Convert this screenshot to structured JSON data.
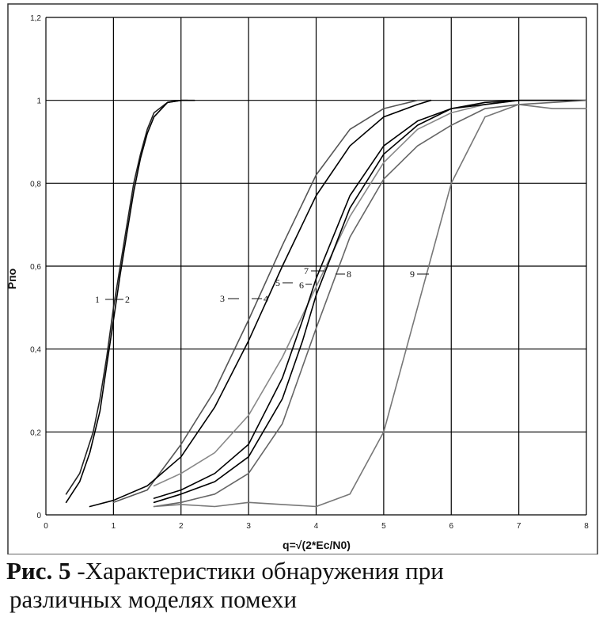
{
  "chart_data": {
    "type": "line",
    "title": "",
    "xlabel": "q=√(2*Ec/N0)",
    "ylabel": "Pпо",
    "xlim": [
      0,
      8
    ],
    "ylim": [
      0,
      1.2
    ],
    "x_ticks": [
      "0",
      "1",
      "2",
      "3",
      "4",
      "5",
      "6",
      "7",
      "8"
    ],
    "y_ticks": [
      "0",
      "0,2",
      "0,4",
      "0,6",
      "0,8",
      "1",
      "1,2"
    ],
    "grid": true,
    "legend": "none",
    "series": [
      {
        "name": "1",
        "color": "#222222",
        "x": [
          0.3,
          0.5,
          0.7,
          0.8,
          0.9,
          1.0,
          1.1,
          1.2,
          1.3,
          1.4,
          1.5,
          1.6,
          1.8,
          2.0,
          2.1
        ],
        "y": [
          0.05,
          0.1,
          0.2,
          0.28,
          0.38,
          0.5,
          0.6,
          0.7,
          0.8,
          0.87,
          0.93,
          0.97,
          0.995,
          1.0,
          1.0
        ]
      },
      {
        "name": "2",
        "color": "#000000",
        "x": [
          0.3,
          0.5,
          0.65,
          0.8,
          0.9,
          1.0,
          1.1,
          1.2,
          1.3,
          1.4,
          1.5,
          1.6,
          1.8,
          2.0,
          2.2
        ],
        "y": [
          0.03,
          0.08,
          0.15,
          0.25,
          0.36,
          0.47,
          0.58,
          0.68,
          0.78,
          0.86,
          0.92,
          0.96,
          0.995,
          1.0,
          1.0
        ]
      },
      {
        "name": "3",
        "color": "#555555",
        "x": [
          1.0,
          1.5,
          2.0,
          2.5,
          3.0,
          3.5,
          4.0,
          4.5,
          5.0,
          5.5,
          5.7
        ],
        "y": [
          0.03,
          0.06,
          0.17,
          0.3,
          0.47,
          0.65,
          0.82,
          0.93,
          0.98,
          1.0,
          1.0
        ]
      },
      {
        "name": "4",
        "color": "#000000",
        "x": [
          0.65,
          1.0,
          1.5,
          2.0,
          2.5,
          3.0,
          3.5,
          4.0,
          4.5,
          5.0,
          5.5,
          5.7
        ],
        "y": [
          0.02,
          0.035,
          0.07,
          0.14,
          0.26,
          0.42,
          0.6,
          0.77,
          0.89,
          0.96,
          0.99,
          1.0
        ]
      },
      {
        "name": "5",
        "color": "#888888",
        "x": [
          1.6,
          2.0,
          2.5,
          3.0,
          3.5,
          4.0,
          4.5,
          5.0,
          5.5,
          6.0,
          6.5,
          7.0
        ],
        "y": [
          0.07,
          0.1,
          0.15,
          0.24,
          0.38,
          0.55,
          0.72,
          0.85,
          0.93,
          0.97,
          0.99,
          1.0
        ]
      },
      {
        "name": "6",
        "color": "#000000",
        "x": [
          1.6,
          2.0,
          2.5,
          3.0,
          3.5,
          3.8,
          4.0,
          4.5,
          5.0,
          5.5,
          6.0,
          6.5,
          7.0,
          8.0
        ],
        "y": [
          0.03,
          0.05,
          0.08,
          0.14,
          0.28,
          0.42,
          0.53,
          0.74,
          0.87,
          0.94,
          0.98,
          0.995,
          1.0,
          1.0
        ]
      },
      {
        "name": "7",
        "color": "#000000",
        "x": [
          1.6,
          2.0,
          2.5,
          3.0,
          3.5,
          3.8,
          4.0,
          4.5,
          5.0,
          5.5,
          6.0,
          6.5,
          7.0,
          8.0
        ],
        "y": [
          0.04,
          0.06,
          0.1,
          0.17,
          0.33,
          0.47,
          0.57,
          0.77,
          0.89,
          0.95,
          0.98,
          0.99,
          1.0,
          1.0
        ]
      },
      {
        "name": "8",
        "color": "#666666",
        "x": [
          1.6,
          2.0,
          2.5,
          3.0,
          3.5,
          4.0,
          4.5,
          5.0,
          5.5,
          6.0,
          6.5,
          7.0,
          8.0
        ],
        "y": [
          0.02,
          0.03,
          0.05,
          0.1,
          0.22,
          0.45,
          0.67,
          0.81,
          0.89,
          0.94,
          0.98,
          0.99,
          1.0
        ]
      },
      {
        "name": "9",
        "color": "#777777",
        "x": [
          1.6,
          2.0,
          2.5,
          3.0,
          3.5,
          4.0,
          4.5,
          5.0,
          5.5,
          6.0,
          6.5,
          7.0,
          7.5,
          8.0
        ],
        "y": [
          0.02,
          0.025,
          0.02,
          0.03,
          0.025,
          0.02,
          0.05,
          0.2,
          0.5,
          0.8,
          0.96,
          0.99,
          0.98,
          0.98
        ]
      }
    ],
    "curve_labels": [
      "1",
      "2",
      "3",
      "4",
      "5",
      "6",
      "7",
      "8",
      "9"
    ]
  },
  "caption": {
    "label": "Рис. 5",
    "text_line1": "-Характеристики обнаружения при",
    "text_line2": "различных моделях помехи"
  }
}
